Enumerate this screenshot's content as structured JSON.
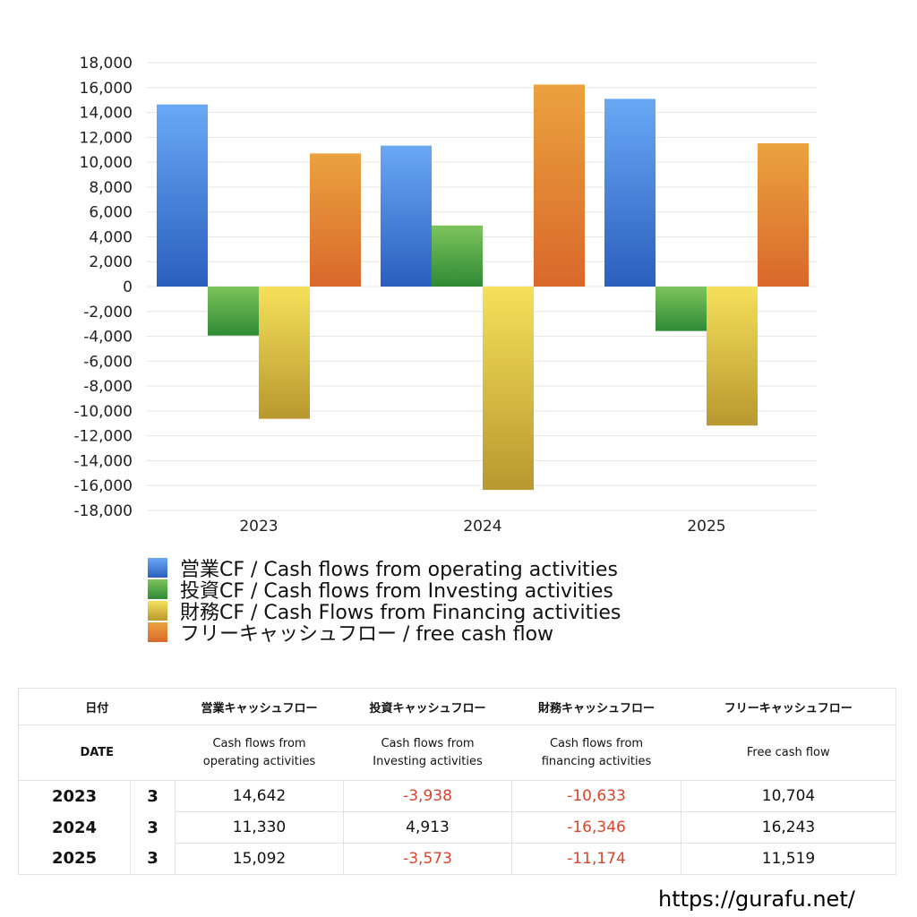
{
  "chart_data": {
    "type": "bar",
    "categories": [
      "2023",
      "2024",
      "2025"
    ],
    "ylim": [
      -18000,
      18000
    ],
    "y_ticks": [
      18000,
      16000,
      14000,
      12000,
      10000,
      8000,
      6000,
      4000,
      2000,
      0,
      -2000,
      -4000,
      -6000,
      -8000,
      -10000,
      -12000,
      -14000,
      -16000,
      -18000
    ],
    "grid": true,
    "legend_position": "bottom-left",
    "series": [
      {
        "name": "営業CF / Cash flows from operating activities",
        "values": [
          14642,
          11330,
          15092
        ],
        "color_top": "#6aa8f5",
        "color_bottom": "#2a5fbe"
      },
      {
        "name": "投資CF / Cash flows from Investing activities",
        "values": [
          -3938,
          4913,
          -3573
        ],
        "color_top": "#7dc45c",
        "color_bottom": "#2f8a35"
      },
      {
        "name": "財務CF / Cash Flows from Financing activities",
        "values": [
          -10633,
          -16346,
          -11174
        ],
        "color_top": "#f5e05a",
        "color_bottom": "#b8982f"
      },
      {
        "name": "フリーキャッシュフロー / free cash flow",
        "values": [
          10704,
          16243,
          11519
        ],
        "color_top": "#eba23f",
        "color_bottom": "#d9682b"
      }
    ]
  },
  "table": {
    "header1": {
      "date": "日付",
      "operating": "営業キャッシュフロー",
      "investing": "投資キャッシュフロー",
      "financing": "財務キャッシュフロー",
      "free": "フリーキャッシュフロー"
    },
    "header2": {
      "date": "DATE",
      "operating_l1": "Cash flows from",
      "operating_l2": "operating activities",
      "investing_l1": "Cash flows from",
      "investing_l2": "Investing activities",
      "financing_l1": "Cash flows from",
      "financing_l2": "financing activities",
      "free": "Free cash flow"
    },
    "rows": [
      {
        "year": "2023",
        "month": "3",
        "operating": "14,642",
        "investing": "-3,938",
        "financing": "-10,633",
        "free": "10,704"
      },
      {
        "year": "2024",
        "month": "3",
        "operating": "11,330",
        "investing": "4,913",
        "financing": "-16,346",
        "free": "16,243"
      },
      {
        "year": "2025",
        "month": "3",
        "operating": "15,092",
        "investing": "-3,573",
        "financing": "-11,174",
        "free": "11,519"
      }
    ]
  },
  "footer": {
    "url": "https://gurafu.net/"
  }
}
